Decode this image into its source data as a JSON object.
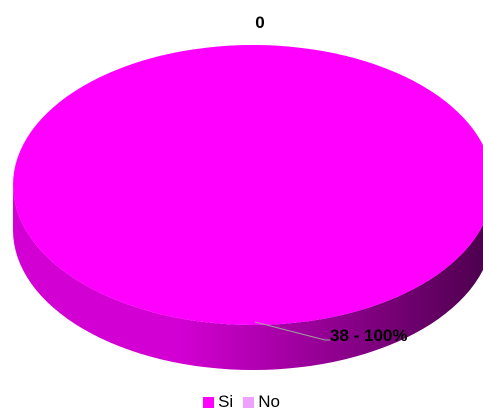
{
  "chart_data": {
    "type": "pie",
    "title": "",
    "three_d": true,
    "categories": [
      "Si",
      "No"
    ],
    "values": [
      38,
      0
    ],
    "data_labels": [
      "38 - 100%",
      "0"
    ],
    "colors": {
      "Si": "#ff00ff",
      "No": "#f0a0ff",
      "side_light": "#d200d2",
      "side_dark": "#4a004a",
      "leader_line": "#a0a0a0"
    },
    "legend": {
      "position": "bottom",
      "entries": [
        "Si",
        "No"
      ]
    }
  }
}
